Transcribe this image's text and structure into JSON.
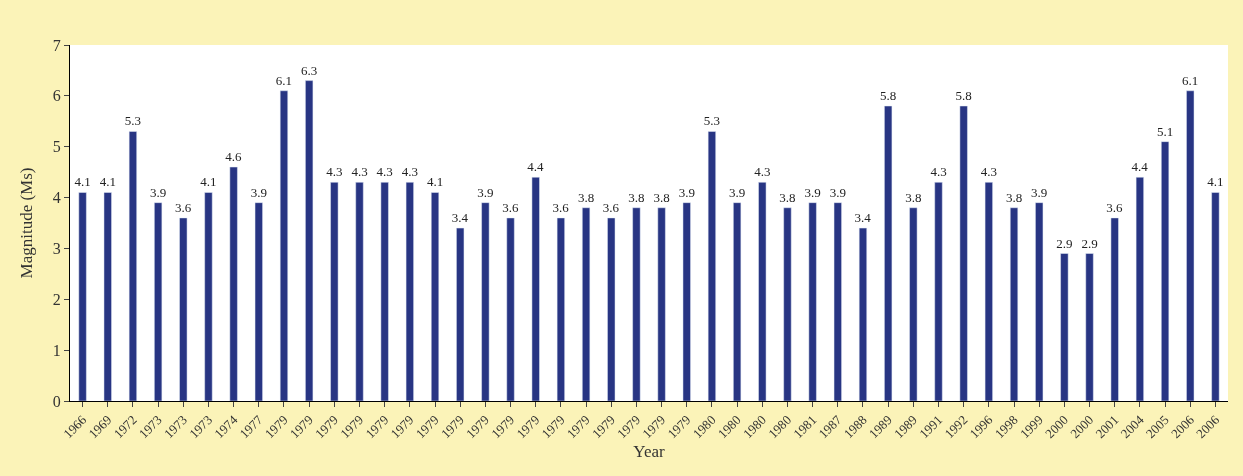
{
  "chart_data": {
    "type": "bar",
    "xlabel": "Year",
    "ylabel": "Magnitude (Ms)",
    "categories": [
      "1966",
      "1969",
      "1972",
      "1973",
      "1973",
      "1973",
      "1974",
      "1977",
      "1979",
      "1979",
      "1979",
      "1979",
      "1979",
      "1979",
      "1979",
      "1979",
      "1979",
      "1979",
      "1979",
      "1979",
      "1979",
      "1979",
      "1979",
      "1979",
      "1979",
      "1980",
      "1980",
      "1980",
      "1980",
      "1981",
      "1987",
      "1988",
      "1989",
      "1989",
      "1991",
      "1992",
      "1996",
      "1998",
      "1999",
      "2000",
      "2000",
      "2001",
      "2004",
      "2005",
      "2006",
      "2006"
    ],
    "values": [
      4.1,
      4.1,
      5.3,
      3.9,
      3.6,
      4.1,
      4.6,
      3.9,
      6.1,
      6.3,
      4.3,
      4.3,
      4.3,
      4.3,
      4.1,
      3.4,
      3.9,
      3.6,
      4.4,
      3.6,
      3.8,
      3.6,
      3.8,
      3.8,
      3.9,
      5.3,
      3.9,
      4.3,
      3.8,
      3.9,
      3.9,
      3.4,
      5.8,
      3.8,
      4.3,
      5.8,
      4.3,
      3.8,
      3.9,
      2.9,
      2.9,
      3.6,
      4.4,
      5.1,
      6.1,
      4.1
    ],
    "color": "#283583",
    "ylim": [
      0,
      7
    ],
    "yticks": [
      0,
      1,
      2,
      3,
      4,
      5,
      6,
      7
    ],
    "data_labels": true,
    "legend": false
  }
}
